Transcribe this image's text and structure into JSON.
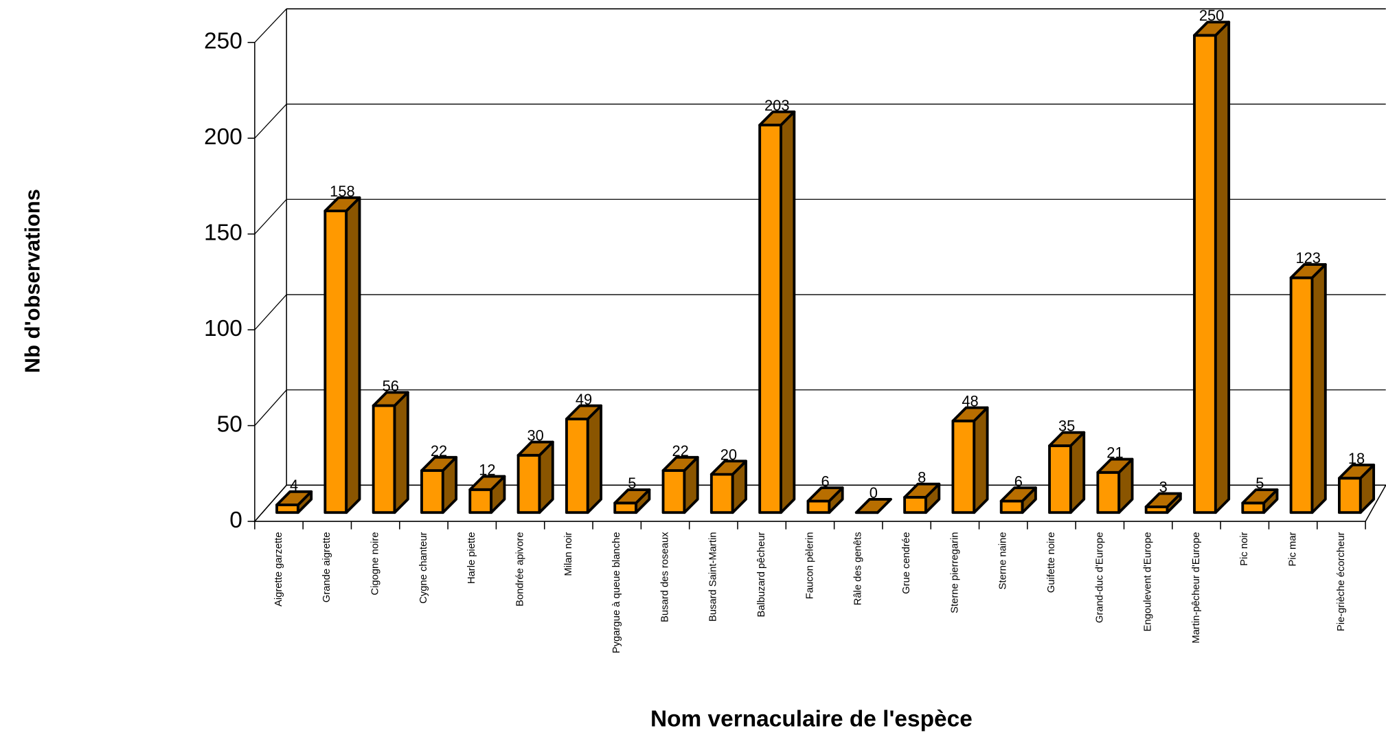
{
  "chart_data": {
    "type": "bar",
    "x_label": "Nom vernaculaire de l'espèce",
    "y_label": "Nb d'observations",
    "categories": [
      "Aigrette garzette",
      "Grande aigrette",
      "Cigogne noire",
      "Cygne chanteur",
      "Harle piette",
      "Bondrée apivore",
      "Milan noir",
      "Pygargue à queue blanche",
      "Busard des roseaux",
      "Busard Saint-Martin",
      "Balbuzard pêcheur",
      "Faucon pèlerin",
      "Râle des genêts",
      "Grue cendrée",
      "Sterne pierregarin",
      "Sterne naine",
      "Guifette noire",
      "Grand-duc d'Europe",
      "Engoulevent d'Europe",
      "Martin-pêcheur d'Europe",
      "Pic noir",
      "Pic mar",
      "Pie-grièche écorcheur"
    ],
    "values": [
      4,
      158,
      56,
      22,
      12,
      30,
      49,
      5,
      22,
      20,
      203,
      6,
      0,
      8,
      48,
      6,
      35,
      21,
      3,
      250,
      5,
      123,
      18
    ],
    "color": "#ff9900",
    "side_color": "#8a5500",
    "top_color": "#b86e00",
    "ylim": [
      0,
      250
    ],
    "yticks": [
      0,
      50,
      100,
      150,
      200,
      250
    ],
    "grid": true
  }
}
